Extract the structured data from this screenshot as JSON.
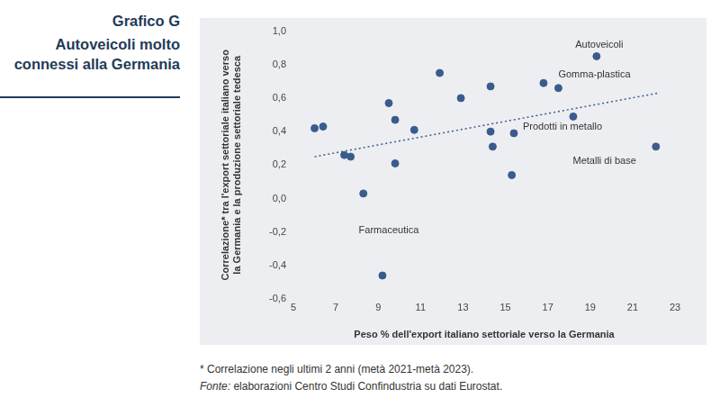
{
  "chart_data": {
    "type": "scatter",
    "title": "Grafico G",
    "subtitle": "Autoveicoli molto connessi alla Germania",
    "x_label": "Peso % dell'export italiano settoriale verso la Germania",
    "y_label": [
      "Correlazione* tra l'export settoriale italiano verso",
      "la Germania e la produzione settoriale tedesca"
    ],
    "footnote": "* Correlazione negli ultimi 2 anni (metà 2021-metà 2023).",
    "source_label": "Fonte:",
    "source": "elaborazioni Centro Studi Confindustria su dati Eurostat.",
    "x": [
      6.0,
      6.4,
      7.4,
      7.7,
      8.3,
      9.2,
      9.5,
      9.8,
      9.8,
      10.7,
      11.9,
      12.9,
      14.3,
      14.3,
      14.4,
      15.3,
      15.4,
      16.8,
      17.5,
      18.2,
      19.3,
      22.1
    ],
    "values": [
      0.42,
      0.43,
      0.26,
      0.25,
      0.03,
      -0.46,
      0.57,
      0.47,
      0.21,
      0.41,
      0.75,
      0.6,
      0.67,
      0.4,
      0.31,
      0.14,
      0.39,
      0.69,
      0.66,
      0.49,
      0.85,
      0.31
    ],
    "point_labels": [
      null,
      null,
      null,
      null,
      null,
      "Farmaceutica",
      null,
      null,
      null,
      null,
      null,
      null,
      null,
      null,
      null,
      null,
      "Prodotti in metallo",
      null,
      "Gomma-plastica",
      null,
      "Autoveicoli",
      "Metalli di base"
    ],
    "color": "#3b5b8c",
    "marker": "circle",
    "trend": {
      "x": [
        6.0,
        22.2
      ],
      "values": [
        0.25,
        0.63
      ],
      "color": "#3b5b8c",
      "line_style": "dotted"
    },
    "xlim": [
      5,
      23
    ],
    "xticks": [
      5,
      7,
      9,
      11,
      13,
      15,
      17,
      19,
      21,
      23
    ],
    "ylim": [
      -0.6,
      1.0
    ],
    "yticks": [
      {
        "value": -0.6,
        "label": "-0,6"
      },
      {
        "value": -0.4,
        "label": "-0,4"
      },
      {
        "value": -0.2,
        "label": "-0,2"
      },
      {
        "value": 0,
        "label": "0,0"
      },
      {
        "value": 0.2,
        "label": "0,2"
      },
      {
        "value": 0.4,
        "label": "0,4"
      },
      {
        "value": 0.6,
        "label": "0,6"
      },
      {
        "value": 0.8,
        "label": "0,8"
      },
      {
        "value": 1.0,
        "label": "1,0"
      }
    ],
    "grid": false
  }
}
